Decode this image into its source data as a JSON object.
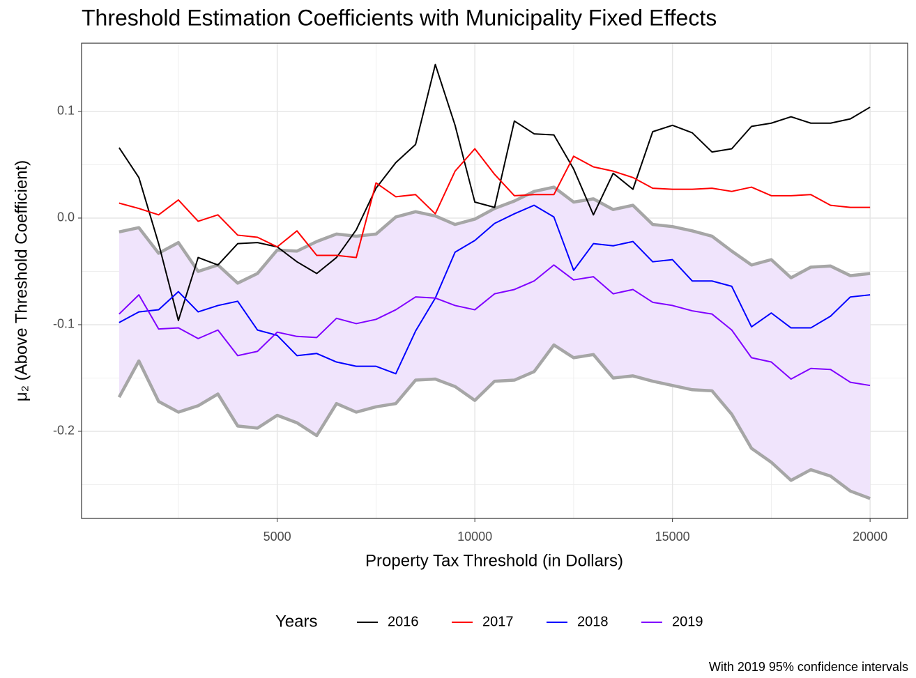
{
  "chart_data": {
    "type": "line",
    "title": "Threshold Estimation Coefficients with Municipality Fixed Effects",
    "x_label": "Property Tax Threshold (in Dollars)",
    "y_label": "μ₂ (Above Threshold Coefficient)",
    "legend_title": "Years",
    "legend_position": "bottom",
    "caption": "With 2019 95% confidence intervals",
    "grid": true,
    "xlim": [
      50,
      20950
    ],
    "ylim": [
      -0.2817,
      0.164
    ],
    "xticks": [
      5000,
      10000,
      15000,
      20000
    ],
    "yticks": [
      0.1,
      {
        "value": 0,
        "label": "0.0"
      },
      -0.1,
      -0.2
    ],
    "x_minor_ticks": [
      2500,
      7500,
      12500,
      17500
    ],
    "y_minor_ticks": [
      0.05,
      -0.05,
      -0.15,
      -0.25
    ],
    "x": [
      1000,
      1500,
      2000,
      2500,
      3000,
      3500,
      4000,
      4500,
      5000,
      5500,
      6000,
      6500,
      7000,
      7500,
      8000,
      8500,
      9000,
      9500,
      10000,
      10500,
      11000,
      11500,
      12000,
      12500,
      13000,
      13500,
      14000,
      14500,
      15000,
      15500,
      16000,
      16500,
      17000,
      17500,
      18000,
      18500,
      19000,
      19500,
      20000
    ],
    "band": {
      "fill": "#f0e4fc",
      "line_color": "#a6a6a6",
      "upper": [
        -0.013,
        -0.009,
        -0.033,
        -0.023,
        -0.05,
        -0.044,
        -0.061,
        -0.052,
        -0.03,
        -0.031,
        -0.022,
        -0.015,
        -0.017,
        -0.015,
        0.001,
        0.006,
        0.002,
        -0.006,
        -0.001,
        0.009,
        0.016,
        0.025,
        0.029,
        0.015,
        0.018,
        0.008,
        0.012,
        -0.006,
        -0.008,
        -0.012,
        -0.017,
        -0.031,
        -0.044,
        -0.039,
        -0.056,
        -0.046,
        -0.045,
        -0.054,
        -0.052
      ],
      "lower": [
        -0.168,
        -0.134,
        -0.172,
        -0.182,
        -0.176,
        -0.165,
        -0.195,
        -0.197,
        -0.185,
        -0.192,
        -0.204,
        -0.174,
        -0.182,
        -0.177,
        -0.174,
        -0.152,
        -0.151,
        -0.158,
        -0.171,
        -0.153,
        -0.152,
        -0.144,
        -0.119,
        -0.131,
        -0.128,
        -0.15,
        -0.148,
        -0.153,
        -0.157,
        -0.161,
        -0.162,
        -0.184,
        -0.216,
        -0.229,
        -0.246,
        -0.236,
        -0.242,
        -0.256,
        -0.263
      ]
    },
    "series": [
      {
        "name": "2016",
        "color": "#000000",
        "values": [
          0.066,
          0.038,
          -0.024,
          -0.096,
          -0.037,
          -0.044,
          -0.024,
          -0.023,
          -0.027,
          -0.041,
          -0.052,
          -0.037,
          -0.011,
          0.028,
          0.052,
          0.069,
          0.144,
          0.087,
          0.015,
          0.01,
          0.091,
          0.079,
          0.078,
          0.046,
          0.003,
          0.042,
          0.027,
          0.081,
          0.087,
          0.08,
          0.062,
          0.065,
          0.086,
          0.089,
          0.095,
          0.089,
          0.089,
          0.093,
          0.104
        ]
      },
      {
        "name": "2017",
        "color": "#ff0000",
        "values": [
          0.014,
          0.009,
          0.003,
          0.017,
          -0.003,
          0.003,
          -0.016,
          -0.018,
          -0.027,
          -0.012,
          -0.035,
          -0.035,
          -0.037,
          0.033,
          0.02,
          0.022,
          0.004,
          0.044,
          0.065,
          0.041,
          0.021,
          0.022,
          0.022,
          0.058,
          0.048,
          0.044,
          0.038,
          0.028,
          0.027,
          0.027,
          0.028,
          0.025,
          0.029,
          0.021,
          0.021,
          0.022,
          0.012,
          0.01,
          0.01
        ]
      },
      {
        "name": "2018",
        "color": "#0000ff",
        "values": [
          -0.098,
          -0.088,
          -0.086,
          -0.069,
          -0.088,
          -0.082,
          -0.078,
          -0.105,
          -0.11,
          -0.129,
          -0.127,
          -0.135,
          -0.139,
          -0.139,
          -0.146,
          -0.106,
          -0.075,
          -0.032,
          -0.021,
          -0.005,
          0.004,
          0.012,
          0.001,
          -0.049,
          -0.024,
          -0.026,
          -0.022,
          -0.041,
          -0.039,
          -0.059,
          -0.059,
          -0.064,
          -0.102,
          -0.089,
          -0.103,
          -0.103,
          -0.092,
          -0.074,
          -0.072
        ]
      },
      {
        "name": "2019",
        "color": "#8000ff",
        "values": [
          -0.09,
          -0.072,
          -0.104,
          -0.103,
          -0.113,
          -0.105,
          -0.129,
          -0.125,
          -0.107,
          -0.111,
          -0.112,
          -0.094,
          -0.099,
          -0.095,
          -0.086,
          -0.074,
          -0.075,
          -0.082,
          -0.086,
          -0.071,
          -0.067,
          -0.059,
          -0.044,
          -0.058,
          -0.055,
          -0.071,
          -0.067,
          -0.079,
          -0.082,
          -0.087,
          -0.09,
          -0.105,
          -0.131,
          -0.135,
          -0.151,
          -0.141,
          -0.142,
          -0.154,
          -0.157
        ]
      }
    ]
  }
}
